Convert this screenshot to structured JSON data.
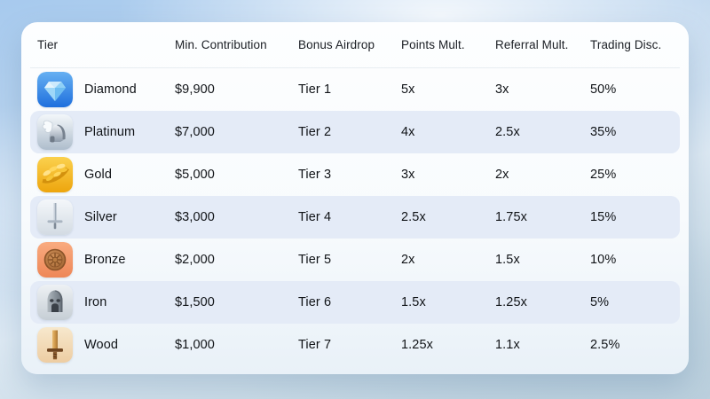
{
  "table": {
    "headers": [
      "Tier",
      "Min. Contribution",
      "Bonus Airdrop",
      "Points Mult.",
      "Referral Mult.",
      "Trading Disc."
    ],
    "rows": [
      {
        "icon": "diamond-icon",
        "tier": "Diamond",
        "min_contribution": "$9,900",
        "bonus_airdrop": "Tier 1",
        "points_mult": "5x",
        "referral_mult": "3x",
        "trading_disc": "50%"
      },
      {
        "icon": "platinum-icon",
        "tier": "Platinum",
        "min_contribution": "$7,000",
        "bonus_airdrop": "Tier 2",
        "points_mult": "4x",
        "referral_mult": "2.5x",
        "trading_disc": "35%"
      },
      {
        "icon": "gold-icon",
        "tier": "Gold",
        "min_contribution": "$5,000",
        "bonus_airdrop": "Tier 3",
        "points_mult": "3x",
        "referral_mult": "2x",
        "trading_disc": "25%"
      },
      {
        "icon": "silver-icon",
        "tier": "Silver",
        "min_contribution": "$3,000",
        "bonus_airdrop": "Tier 4",
        "points_mult": "2.5x",
        "referral_mult": "1.75x",
        "trading_disc": "15%"
      },
      {
        "icon": "bronze-icon",
        "tier": "Bronze",
        "min_contribution": "$2,000",
        "bonus_airdrop": "Tier 5",
        "points_mult": "2x",
        "referral_mult": "1.5x",
        "trading_disc": "10%"
      },
      {
        "icon": "iron-icon",
        "tier": "Iron",
        "min_contribution": "$1,500",
        "bonus_airdrop": "Tier 6",
        "points_mult": "1.5x",
        "referral_mult": "1.25x",
        "trading_disc": "5%"
      },
      {
        "icon": "wood-icon",
        "tier": "Wood",
        "min_contribution": "$1,000",
        "bonus_airdrop": "Tier 7",
        "points_mult": "1.25x",
        "referral_mult": "1.1x",
        "trading_disc": "2.5%"
      }
    ]
  },
  "colors": {
    "stripe": "#e4ebf7",
    "card_top": "#fdfeff",
    "card_bottom": "#e9f1f8",
    "sky_top": "#a7caee",
    "sky_bottom": "#c0d3df",
    "text": "#101317"
  }
}
